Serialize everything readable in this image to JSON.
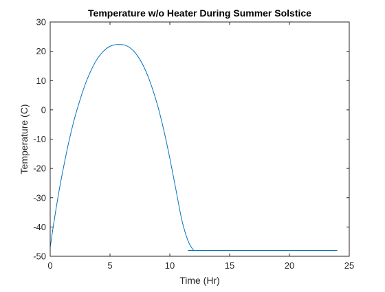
{
  "chart_data": {
    "type": "line",
    "title": "Temperature w/o Heater During Summer Solstice",
    "xlabel": "Time (Hr)",
    "ylabel": "Temperature (C)",
    "xlim": [
      0,
      25
    ],
    "ylim": [
      -50,
      30
    ],
    "xticks": [
      0,
      5,
      10,
      15,
      20,
      25
    ],
    "yticks": [
      -50,
      -40,
      -30,
      -20,
      -10,
      0,
      10,
      20,
      30
    ],
    "grid": false,
    "box": true,
    "line_color": "#0072BD",
    "series": [
      {
        "x": [
          0,
          0.25,
          0.5,
          0.75,
          1,
          1.5,
          2,
          2.5,
          3,
          3.5,
          4,
          4.5,
          5,
          5.5,
          6,
          6.3,
          6.6,
          7,
          7.5,
          8,
          8.5,
          9,
          9.5,
          10,
          10.5,
          11,
          11.5,
          11.9,
          12.1,
          12.5,
          24
        ],
        "y": [
          -47,
          -40,
          -33.5,
          -27.5,
          -22,
          -12,
          -3.5,
          3.5,
          9.5,
          14.2,
          17.8,
          20.2,
          21.7,
          22.3,
          22.3,
          22.0,
          21.4,
          20.0,
          17.2,
          13.2,
          7.8,
          1.2,
          -7.0,
          -16.5,
          -27.0,
          -37.5,
          -44.5,
          -47.5,
          -48,
          -48,
          -48
        ]
      }
    ]
  }
}
